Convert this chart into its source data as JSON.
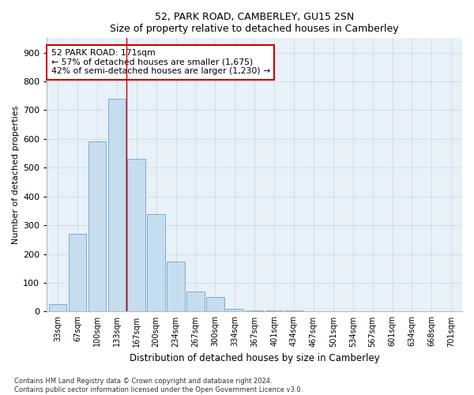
{
  "title1": "52, PARK ROAD, CAMBERLEY, GU15 2SN",
  "title2": "Size of property relative to detached houses in Camberley",
  "xlabel": "Distribution of detached houses by size in Camberley",
  "ylabel": "Number of detached properties",
  "categories": [
    "33sqm",
    "67sqm",
    "100sqm",
    "133sqm",
    "167sqm",
    "200sqm",
    "234sqm",
    "267sqm",
    "300sqm",
    "334sqm",
    "367sqm",
    "401sqm",
    "434sqm",
    "467sqm",
    "501sqm",
    "534sqm",
    "567sqm",
    "601sqm",
    "634sqm",
    "668sqm",
    "701sqm"
  ],
  "values": [
    25,
    270,
    590,
    740,
    530,
    340,
    175,
    70,
    50,
    10,
    5,
    5,
    3,
    2,
    1,
    1,
    0,
    1,
    0,
    0,
    0
  ],
  "bar_color": "#c5ddef",
  "bar_edge_color": "#7bafd4",
  "vline_x_index": 3.5,
  "annotation_text": "52 PARK ROAD: 171sqm\n← 57% of detached houses are smaller (1,675)\n42% of semi-detached houses are larger (1,230) →",
  "annotation_box_color": "#ffffff",
  "annotation_box_edge_color": "#cc0000",
  "vline_color": "#cc0000",
  "grid_color": "#ccdce8",
  "background_color": "#e8f0f8",
  "ylim": [
    0,
    950
  ],
  "yticks": [
    0,
    100,
    200,
    300,
    400,
    500,
    600,
    700,
    800,
    900
  ],
  "footer1": "Contains HM Land Registry data © Crown copyright and database right 2024.",
  "footer2": "Contains public sector information licensed under the Open Government Licence v3.0.",
  "figsize": [
    6.0,
    5.0
  ],
  "dpi": 100
}
